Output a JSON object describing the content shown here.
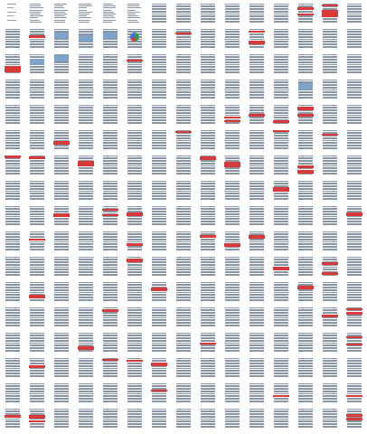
{
  "document_viewer": {
    "view": "page-thumbnails",
    "columns": 15,
    "rows": 17,
    "pages": [
      {
        "n": 1,
        "kind": "cover"
      },
      {
        "n": 2,
        "kind": "toc"
      },
      {
        "n": 3,
        "kind": "toc"
      },
      {
        "n": 4,
        "kind": "toc"
      },
      {
        "n": 5,
        "kind": "toc"
      },
      {
        "n": 6,
        "kind": "toc"
      },
      {
        "n": 7,
        "kind": "blank-text"
      },
      {
        "n": 8,
        "kind": "text"
      },
      {
        "n": 9,
        "kind": "text"
      },
      {
        "n": 10,
        "kind": "text"
      },
      {
        "n": 11,
        "kind": "text"
      },
      {
        "n": 12,
        "kind": "text"
      },
      {
        "n": 13,
        "kind": "red"
      },
      {
        "n": 14,
        "kind": "red-heavy"
      },
      {
        "n": 15,
        "kind": "text"
      },
      {
        "n": 16,
        "kind": "text"
      },
      {
        "n": 17,
        "kind": "red"
      },
      {
        "n": 18,
        "kind": "figure"
      },
      {
        "n": 19,
        "kind": "figure"
      },
      {
        "n": 20,
        "kind": "figure"
      },
      {
        "n": 21,
        "kind": "pie"
      },
      {
        "n": 22,
        "kind": "text"
      },
      {
        "n": 23,
        "kind": "red"
      },
      {
        "n": 24,
        "kind": "text"
      },
      {
        "n": 25,
        "kind": "text"
      },
      {
        "n": 26,
        "kind": "red"
      },
      {
        "n": 27,
        "kind": "text"
      },
      {
        "n": 28,
        "kind": "text"
      },
      {
        "n": 29,
        "kind": "text"
      },
      {
        "n": 30,
        "kind": "text"
      },
      {
        "n": 31,
        "kind": "red"
      },
      {
        "n": 32,
        "kind": "figure"
      },
      {
        "n": 33,
        "kind": "figure"
      },
      {
        "n": 34,
        "kind": "text"
      },
      {
        "n": 35,
        "kind": "text"
      },
      {
        "n": 36,
        "kind": "red"
      },
      {
        "n": 37,
        "kind": "text"
      },
      {
        "n": 38,
        "kind": "text"
      },
      {
        "n": 39,
        "kind": "text"
      },
      {
        "n": 40,
        "kind": "text"
      },
      {
        "n": 41,
        "kind": "text"
      },
      {
        "n": 42,
        "kind": "text"
      },
      {
        "n": 43,
        "kind": "text"
      },
      {
        "n": 44,
        "kind": "text"
      },
      {
        "n": 45,
        "kind": "text"
      },
      {
        "n": 46,
        "kind": "text"
      },
      {
        "n": 47,
        "kind": "text"
      },
      {
        "n": 48,
        "kind": "text"
      },
      {
        "n": 49,
        "kind": "text"
      },
      {
        "n": 50,
        "kind": "text"
      },
      {
        "n": 51,
        "kind": "text"
      },
      {
        "n": 52,
        "kind": "text"
      },
      {
        "n": 53,
        "kind": "text"
      },
      {
        "n": 54,
        "kind": "text"
      },
      {
        "n": 55,
        "kind": "text"
      },
      {
        "n": 56,
        "kind": "text"
      },
      {
        "n": 57,
        "kind": "text"
      },
      {
        "n": 58,
        "kind": "figure"
      },
      {
        "n": 59,
        "kind": "text"
      },
      {
        "n": 60,
        "kind": "text"
      },
      {
        "n": 61,
        "kind": "text"
      },
      {
        "n": 62,
        "kind": "text"
      },
      {
        "n": 63,
        "kind": "text"
      },
      {
        "n": 64,
        "kind": "text"
      },
      {
        "n": 65,
        "kind": "text"
      },
      {
        "n": 66,
        "kind": "text"
      },
      {
        "n": 67,
        "kind": "text"
      },
      {
        "n": 68,
        "kind": "text"
      },
      {
        "n": 69,
        "kind": "text"
      },
      {
        "n": 70,
        "kind": "red"
      },
      {
        "n": 71,
        "kind": "red"
      },
      {
        "n": 72,
        "kind": "red"
      },
      {
        "n": 73,
        "kind": "red"
      },
      {
        "n": 74,
        "kind": "text"
      },
      {
        "n": 75,
        "kind": "text"
      }
    ],
    "colors": {
      "page_background": "#ffffff",
      "text_lines": "#8a96a6",
      "highlight": "#d73a3a",
      "figure": "#7fa2c8"
    }
  }
}
